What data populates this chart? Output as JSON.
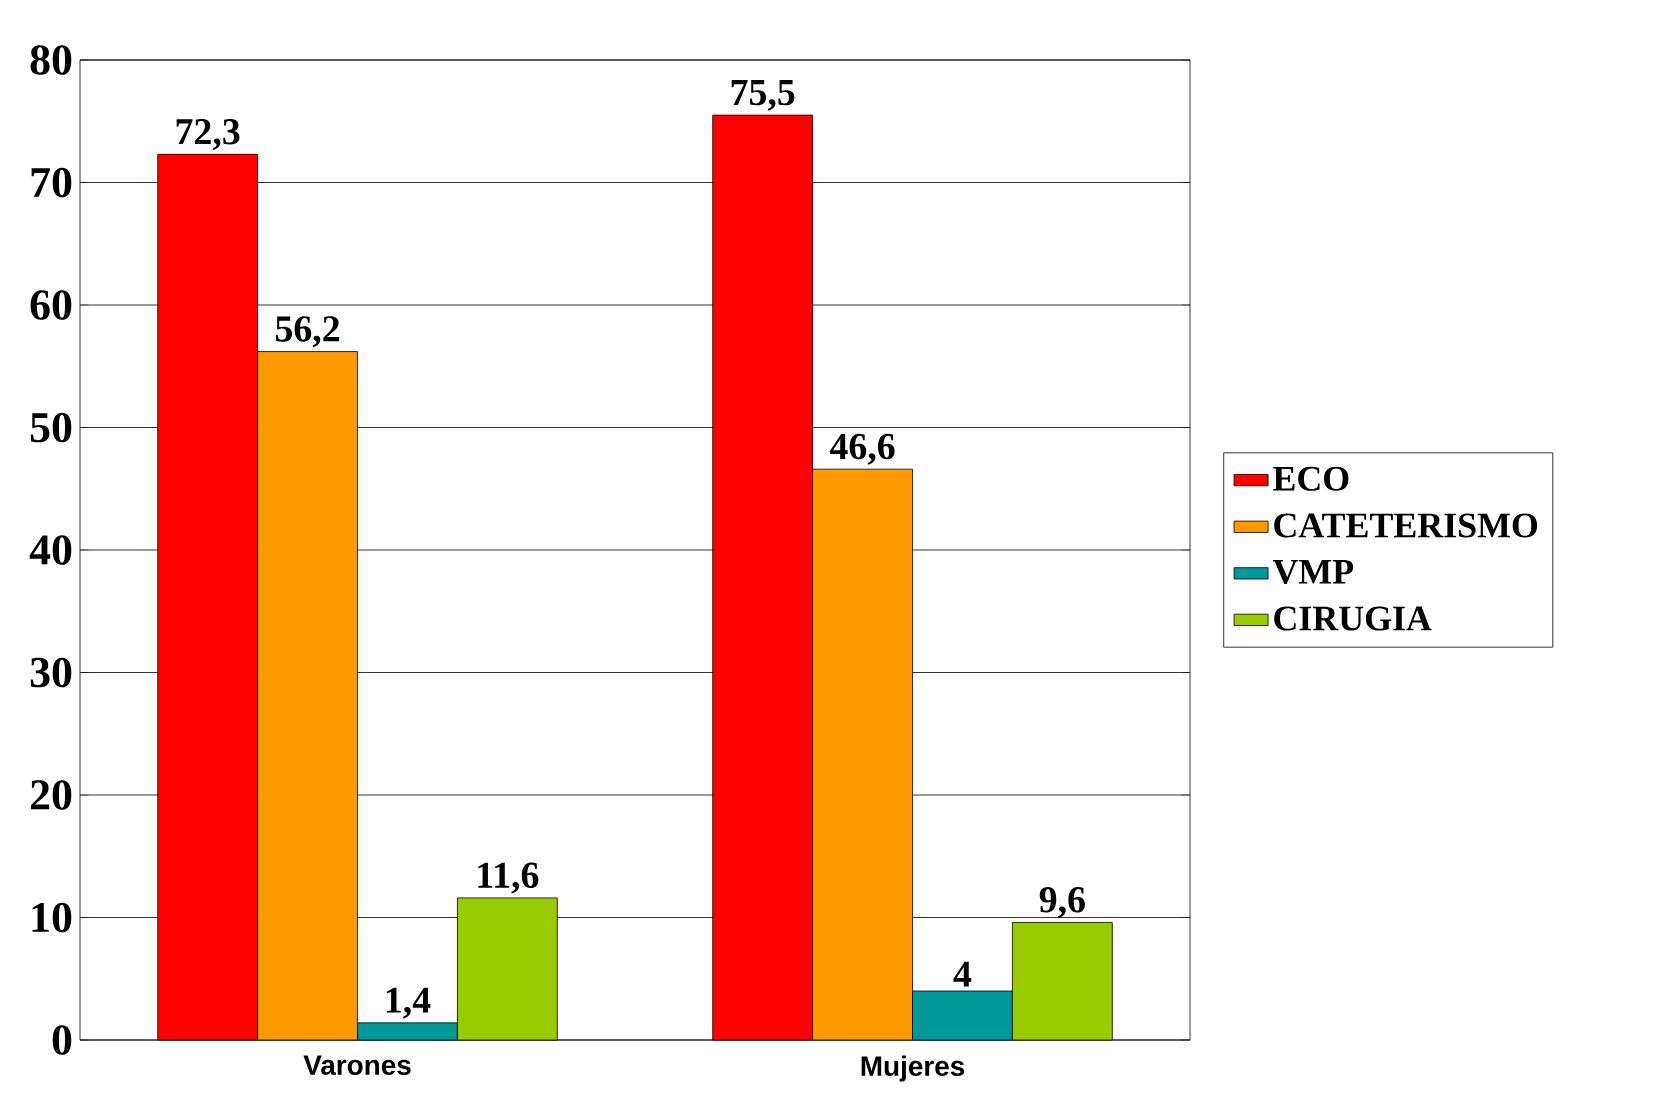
{
  "chart_data": {
    "type": "bar",
    "categories": [
      "Varones",
      "Mujeres"
    ],
    "series": [
      {
        "name": "ECO",
        "color": "#ff0000",
        "values": [
          72.3,
          75.5
        ],
        "value_labels": [
          "72,3",
          "75,5"
        ]
      },
      {
        "name": "CATETERISMO",
        "color": "#ff9900",
        "values": [
          56.2,
          46.6
        ],
        "value_labels": [
          "56,2",
          "46,6"
        ]
      },
      {
        "name": "VMP",
        "color": "#009999",
        "values": [
          1.4,
          4
        ],
        "value_labels": [
          "1,4",
          "4"
        ]
      },
      {
        "name": "CIRUGIA",
        "color": "#99cc00",
        "values": [
          11.6,
          9.6
        ],
        "value_labels": [
          "11,6",
          "9,6"
        ]
      }
    ],
    "ylim": [
      0,
      80
    ],
    "yticks": [
      0,
      10,
      20,
      30,
      40,
      50,
      60,
      70,
      80
    ],
    "grid": "y",
    "legend": "right"
  }
}
